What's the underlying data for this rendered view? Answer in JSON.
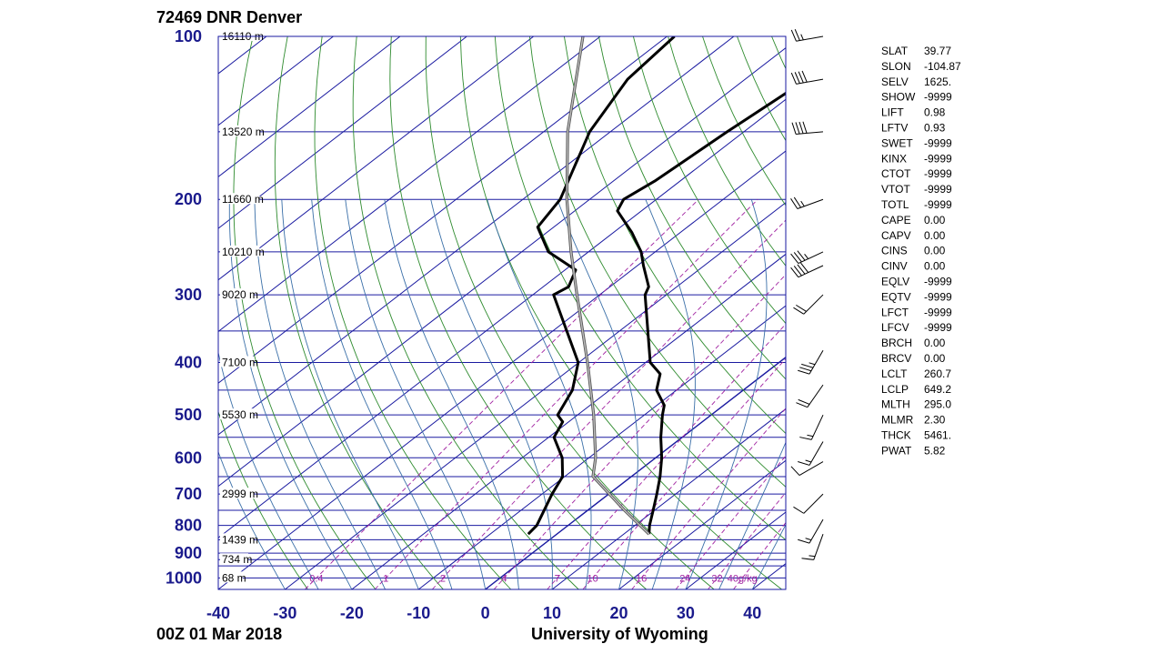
{
  "header": {
    "title": "72469 DNR Denver"
  },
  "footer": {
    "left": "00Z 01 Mar 2018",
    "right": "University of Wyoming"
  },
  "colors": {
    "isobar": "#1a1aa0",
    "isotherm": "#1a1aa0",
    "dry_adiabat": "#2e8b2e",
    "moist_adiabat": "#3a6fa8",
    "mixing_ratio": "#a020a0",
    "sounding": "#000000",
    "parcel": "#888888"
  },
  "indices": [
    {
      "name": "SLAT",
      "value": "39.77"
    },
    {
      "name": "SLON",
      "value": "-104.87"
    },
    {
      "name": "SELV",
      "value": "1625."
    },
    {
      "name": "SHOW",
      "value": "-9999"
    },
    {
      "name": "LIFT",
      "value": "0.98"
    },
    {
      "name": "LFTV",
      "value": "0.93"
    },
    {
      "name": "SWET",
      "value": "-9999"
    },
    {
      "name": "KINX",
      "value": "-9999"
    },
    {
      "name": "CTOT",
      "value": "-9999"
    },
    {
      "name": "VTOT",
      "value": "-9999"
    },
    {
      "name": "TOTL",
      "value": "-9999"
    },
    {
      "name": "CAPE",
      "value": "0.00"
    },
    {
      "name": "CAPV",
      "value": "0.00"
    },
    {
      "name": "CINS",
      "value": "0.00"
    },
    {
      "name": "CINV",
      "value": "0.00"
    },
    {
      "name": "EQLV",
      "value": "-9999"
    },
    {
      "name": "EQTV",
      "value": "-9999"
    },
    {
      "name": "LFCT",
      "value": "-9999"
    },
    {
      "name": "LFCV",
      "value": "-9999"
    },
    {
      "name": "BRCH",
      "value": "0.00"
    },
    {
      "name": "BRCV",
      "value": "0.00"
    },
    {
      "name": "LCLT",
      "value": "260.7"
    },
    {
      "name": "LCLP",
      "value": "649.2"
    },
    {
      "name": "MLTH",
      "value": "295.0"
    },
    {
      "name": "MLMR",
      "value": "2.30"
    },
    {
      "name": "THCK",
      "value": "5461."
    },
    {
      "name": "PWAT",
      "value": "5.82"
    }
  ],
  "chart_data": {
    "type": "line",
    "title": "72469 DNR Denver",
    "subtitle": "00Z 01 Mar 2018",
    "xlim": [
      -40,
      45
    ],
    "ylim": [
      1050,
      100
    ],
    "log_pressure_axis": true,
    "skew_per_decade_C": 105,
    "x_ticks": [
      -40,
      -30,
      -20,
      -10,
      0,
      10,
      20,
      30,
      40
    ],
    "y_ticks": [
      100,
      200,
      300,
      400,
      500,
      600,
      700,
      800,
      900,
      1000
    ],
    "isobars_hPa": [
      100,
      150,
      200,
      250,
      300,
      350,
      400,
      450,
      500,
      550,
      600,
      650,
      700,
      750,
      800,
      850,
      900,
      925,
      950,
      1000,
      1050
    ],
    "height_labels": [
      {
        "p": 100,
        "label": "16110 m"
      },
      {
        "p": 150,
        "label": "13520 m"
      },
      {
        "p": 200,
        "label": "11660 m"
      },
      {
        "p": 250,
        "label": "10210 m"
      },
      {
        "p": 300,
        "label": "9020 m"
      },
      {
        "p": 400,
        "label": "7100 m"
      },
      {
        "p": 500,
        "label": "5530 m"
      },
      {
        "p": 700,
        "label": "2999 m"
      },
      {
        "p": 850,
        "label": "1439 m"
      },
      {
        "p": 925,
        "label": "734 m"
      },
      {
        "p": 1000,
        "label": "68 m"
      }
    ],
    "mixing_ratio_labels": [
      "0.4",
      "1",
      "2",
      "4",
      "7",
      "10",
      "16",
      "24",
      "32",
      "40g/kg"
    ],
    "mixing_ratios_gkg": [
      0.4,
      1,
      2,
      4,
      7,
      10,
      16,
      24,
      32,
      40
    ],
    "series": [
      {
        "name": "Temperature",
        "points": [
          {
            "p": 830,
            "t": 13.8
          },
          {
            "p": 800,
            "t": 12.2
          },
          {
            "p": 750,
            "t": 9.8
          },
          {
            "p": 700,
            "t": 7.2
          },
          {
            "p": 650,
            "t": 4.3
          },
          {
            "p": 600,
            "t": 0.9
          },
          {
            "p": 550,
            "t": -3.2
          },
          {
            "p": 500,
            "t": -7.3
          },
          {
            "p": 480,
            "t": -8.9
          },
          {
            "p": 450,
            "t": -13.0
          },
          {
            "p": 420,
            "t": -15.6
          },
          {
            "p": 400,
            "t": -19.3
          },
          {
            "p": 300,
            "t": -33.2
          },
          {
            "p": 290,
            "t": -34.2
          },
          {
            "p": 265,
            "t": -39.1
          },
          {
            "p": 250,
            "t": -42.1
          },
          {
            "p": 230,
            "t": -47.3
          },
          {
            "p": 210,
            "t": -53.6
          },
          {
            "p": 200,
            "t": -54.9
          },
          {
            "p": 185,
            "t": -53.8
          },
          {
            "p": 150,
            "t": -52.5
          },
          {
            "p": 120,
            "t": -50.7
          },
          {
            "p": 110,
            "t": -50.5
          },
          {
            "p": 100,
            "t": -50.3
          }
        ]
      },
      {
        "name": "Dew point",
        "points": [
          {
            "p": 830,
            "t": -4.3
          },
          {
            "p": 800,
            "t": -4.7
          },
          {
            "p": 700,
            "t": -8.5
          },
          {
            "p": 650,
            "t": -10.3
          },
          {
            "p": 600,
            "t": -14.0
          },
          {
            "p": 550,
            "t": -19.2
          },
          {
            "p": 515,
            "t": -20.9
          },
          {
            "p": 500,
            "t": -23.0
          },
          {
            "p": 480,
            "t": -24.0
          },
          {
            "p": 450,
            "t": -25.6
          },
          {
            "p": 400,
            "t": -30.1
          },
          {
            "p": 300,
            "t": -46.9
          },
          {
            "p": 290,
            "t": -46.2
          },
          {
            "p": 270,
            "t": -48.4
          },
          {
            "p": 250,
            "t": -56.0
          },
          {
            "p": 225,
            "t": -62.4
          },
          {
            "p": 200,
            "t": -64.4
          },
          {
            "p": 150,
            "t": -73.1
          },
          {
            "p": 120,
            "t": -77.6
          },
          {
            "p": 100,
            "t": -78.9
          }
        ]
      },
      {
        "name": "Parcel path",
        "points": [
          {
            "p": 830,
            "t": 13.8
          },
          {
            "p": 750,
            "t": 5.5
          },
          {
            "p": 649.2,
            "t": -5.8
          },
          {
            "p": 600,
            "t": -9.0
          },
          {
            "p": 500,
            "t": -17.6
          },
          {
            "p": 400,
            "t": -28.7
          },
          {
            "p": 300,
            "t": -43.4
          },
          {
            "p": 250,
            "t": -52.6
          },
          {
            "p": 200,
            "t": -63.4
          },
          {
            "p": 150,
            "t": -76.4
          },
          {
            "p": 100,
            "t": -92.6
          }
        ]
      }
    ],
    "wind_barbs": [
      {
        "p": 100,
        "dir": 260,
        "spd": 25
      },
      {
        "p": 120,
        "dir": 260,
        "spd": 40
      },
      {
        "p": 150,
        "dir": 265,
        "spd": 40
      },
      {
        "p": 200,
        "dir": 250,
        "spd": 25
      },
      {
        "p": 250,
        "dir": 245,
        "spd": 35
      },
      {
        "p": 265,
        "dir": 245,
        "spd": 40
      },
      {
        "p": 300,
        "dir": 225,
        "spd": 20
      },
      {
        "p": 380,
        "dir": 210,
        "spd": 35
      },
      {
        "p": 440,
        "dir": 215,
        "spd": 20
      },
      {
        "p": 500,
        "dir": 205,
        "spd": 15
      },
      {
        "p": 560,
        "dir": 210,
        "spd": 15
      },
      {
        "p": 610,
        "dir": 240,
        "spd": 10
      },
      {
        "p": 700,
        "dir": 225,
        "spd": 10
      },
      {
        "p": 780,
        "dir": 210,
        "spd": 15
      },
      {
        "p": 830,
        "dir": 200,
        "spd": 15
      }
    ]
  }
}
